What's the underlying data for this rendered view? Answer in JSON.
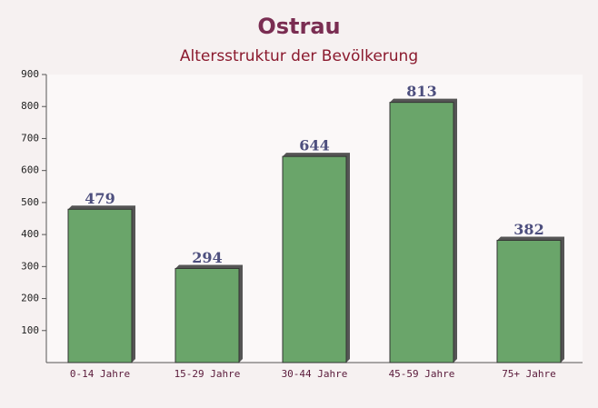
{
  "chart_data": {
    "type": "bar",
    "title": "Ostrau",
    "subtitle": "Altersstruktur der Bevölkerung",
    "categories": [
      "0-14 Jahre",
      "15-29 Jahre",
      "30-44 Jahre",
      "45-59 Jahre",
      "75+ Jahre"
    ],
    "values": [
      479,
      294,
      644,
      813,
      382
    ],
    "color": "#6aa56a",
    "ylim": [
      0,
      900
    ],
    "yticks": [
      100,
      200,
      300,
      400,
      500,
      600,
      700,
      800,
      900
    ],
    "grid": false
  }
}
